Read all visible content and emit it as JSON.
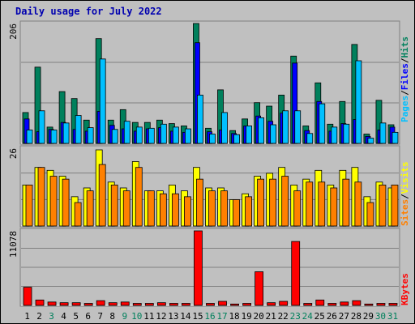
{
  "title": "Daily usage for July 2022",
  "colors": {
    "hits": "#00805c",
    "files": "#0000ff",
    "pages": "#00c0ff",
    "visits": "#ffff00",
    "sites": "#ff8000",
    "kbytes": "#ff0000",
    "panel_bg": "#c0c0c0",
    "weekday_label": "#000000",
    "weekend_label": "#00805c"
  },
  "chart_data": [
    {
      "type": "bar",
      "panel": "hits-files-pages",
      "ymax_label": "206",
      "ylim": [
        0,
        206
      ],
      "legend": [
        "Pages",
        "Files",
        "Hits"
      ],
      "categories": [
        "1",
        "2",
        "3",
        "4",
        "5",
        "6",
        "7",
        "8",
        "9",
        "10",
        "11",
        "12",
        "13",
        "14",
        "15",
        "16",
        "17",
        "18",
        "19",
        "20",
        "21",
        "22",
        "23",
        "24",
        "25",
        "26",
        "27",
        "28",
        "29",
        "30",
        "31"
      ],
      "series": [
        {
          "name": "Hits",
          "values": [
            53,
            131,
            28,
            89,
            77,
            40,
            180,
            40,
            58,
            36,
            36,
            40,
            34,
            30,
            206,
            26,
            92,
            22,
            42,
            70,
            64,
            83,
            150,
            30,
            104,
            33,
            72,
            170,
            16,
            74,
            32
          ]
        },
        {
          "name": "Files",
          "values": [
            42,
            20,
            24,
            36,
            24,
            21,
            55,
            31,
            25,
            21,
            25,
            27,
            21,
            19,
            173,
            20,
            23,
            17,
            30,
            47,
            38,
            52,
            138,
            22,
            72,
            21,
            34,
            41,
            12,
            23,
            28
          ]
        },
        {
          "name": "Pages",
          "values": [
            23,
            56,
            23,
            35,
            48,
            27,
            145,
            24,
            38,
            28,
            26,
            33,
            28,
            25,
            83,
            16,
            53,
            15,
            30,
            44,
            32,
            56,
            56,
            17,
            68,
            28,
            33,
            142,
            9,
            35,
            19
          ]
        }
      ]
    },
    {
      "type": "bar",
      "panel": "visits-sites",
      "ymax_label": "26",
      "ylim": [
        0,
        26
      ],
      "legend": [
        "Sites",
        "Visits"
      ],
      "categories": [
        "1",
        "2",
        "3",
        "4",
        "5",
        "6",
        "7",
        "8",
        "9",
        "10",
        "11",
        "12",
        "13",
        "14",
        "15",
        "16",
        "17",
        "18",
        "19",
        "20",
        "21",
        "22",
        "23",
        "24",
        "25",
        "26",
        "27",
        "28",
        "29",
        "30",
        "31"
      ],
      "series": [
        {
          "name": "Visits",
          "values": [
            14,
            20,
            19,
            17,
            10,
            13,
            26,
            15,
            13,
            22,
            12,
            12,
            14,
            12,
            20,
            13,
            13,
            9,
            11,
            17,
            18,
            20,
            14,
            16,
            19,
            14,
            19,
            20,
            10,
            15,
            13
          ]
        },
        {
          "name": "Sites",
          "values": [
            14,
            20,
            17,
            16,
            8,
            12,
            21,
            14,
            12,
            20,
            12,
            11,
            11,
            10,
            16,
            12,
            12,
            9,
            10,
            16,
            16,
            17,
            12,
            15,
            15,
            13,
            16,
            15,
            8,
            14,
            14
          ]
        }
      ]
    },
    {
      "type": "bar",
      "panel": "kbytes",
      "ymax_label": "11078",
      "ylim": [
        0,
        11078
      ],
      "legend": [
        "KBytes"
      ],
      "categories": [
        "1",
        "2",
        "3",
        "4",
        "5",
        "6",
        "7",
        "8",
        "9",
        "10",
        "11",
        "12",
        "13",
        "14",
        "15",
        "16",
        "17",
        "18",
        "19",
        "20",
        "21",
        "22",
        "23",
        "24",
        "25",
        "26",
        "27",
        "28",
        "29",
        "30",
        "31"
      ],
      "series": [
        {
          "name": "KBytes",
          "values": [
            2700,
            800,
            500,
            400,
            400,
            300,
            700,
            400,
            500,
            300,
            300,
            400,
            300,
            300,
            11078,
            300,
            600,
            200,
            300,
            5000,
            400,
            600,
            9500,
            300,
            800,
            300,
            500,
            700,
            200,
            300,
            300
          ]
        }
      ]
    }
  ],
  "weekend_days": [
    3,
    9,
    10,
    16,
    17,
    23,
    24,
    30,
    31
  ]
}
